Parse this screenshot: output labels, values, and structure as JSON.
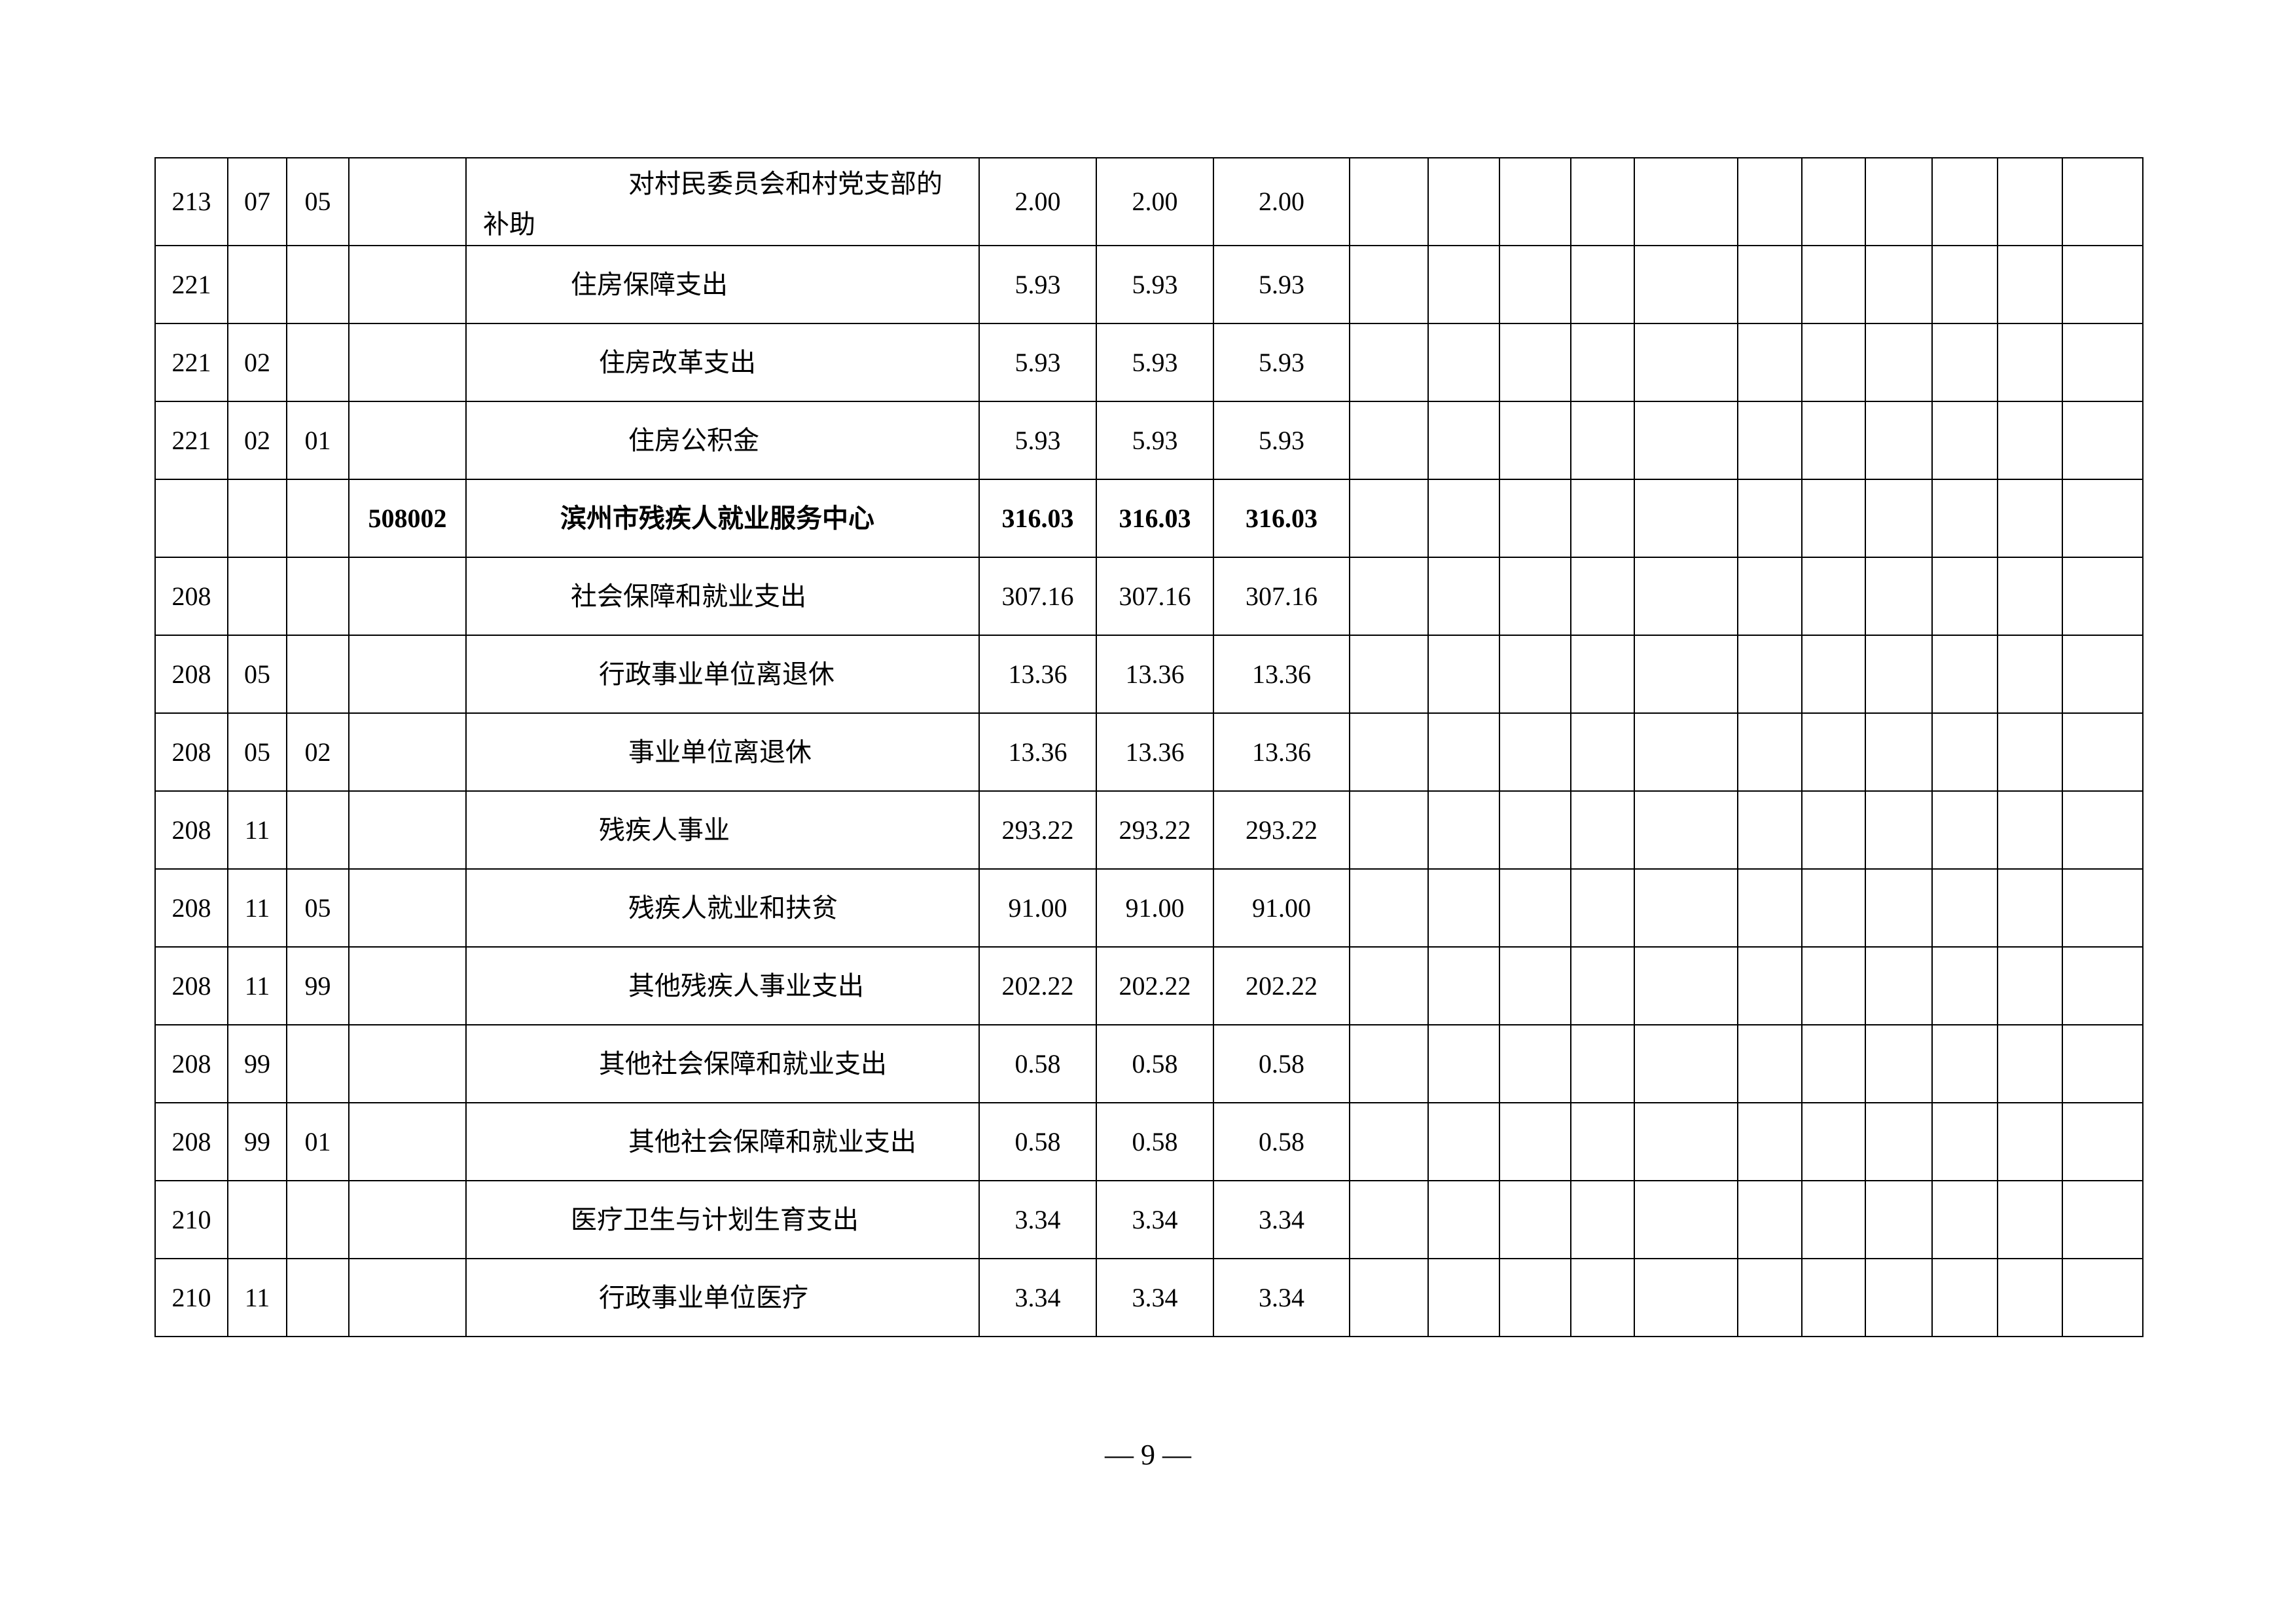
{
  "table": {
    "rows": [
      {
        "class": "213",
        "item": "07",
        "section": "05",
        "code": "",
        "name": "对村民委员会和村党支部的补助",
        "level": 3,
        "v1": "2.00",
        "v2": "2.00",
        "v3": "2.00",
        "bold": false
      },
      {
        "class": "221",
        "item": "",
        "section": "",
        "code": "",
        "name": "住房保障支出",
        "level": 1,
        "v1": "5.93",
        "v2": "5.93",
        "v3": "5.93",
        "bold": false
      },
      {
        "class": "221",
        "item": "02",
        "section": "",
        "code": "",
        "name": "住房改革支出",
        "level": 2,
        "v1": "5.93",
        "v2": "5.93",
        "v3": "5.93",
        "bold": false
      },
      {
        "class": "221",
        "item": "02",
        "section": "01",
        "code": "",
        "name": "住房公积金",
        "level": 3,
        "v1": "5.93",
        "v2": "5.93",
        "v3": "5.93",
        "bold": false
      },
      {
        "class": "",
        "item": "",
        "section": "",
        "code": "508002",
        "name": "滨州市残疾人就业服务中心",
        "level": 0,
        "v1": "316.03",
        "v2": "316.03",
        "v3": "316.03",
        "bold": true
      },
      {
        "class": "208",
        "item": "",
        "section": "",
        "code": "",
        "name": "社会保障和就业支出",
        "level": 1,
        "v1": "307.16",
        "v2": "307.16",
        "v3": "307.16",
        "bold": false
      },
      {
        "class": "208",
        "item": "05",
        "section": "",
        "code": "",
        "name": "行政事业单位离退休",
        "level": 2,
        "v1": "13.36",
        "v2": "13.36",
        "v3": "13.36",
        "bold": false
      },
      {
        "class": "208",
        "item": "05",
        "section": "02",
        "code": "",
        "name": "事业单位离退休",
        "level": 3,
        "v1": "13.36",
        "v2": "13.36",
        "v3": "13.36",
        "bold": false
      },
      {
        "class": "208",
        "item": "11",
        "section": "",
        "code": "",
        "name": "残疾人事业",
        "level": 2,
        "v1": "293.22",
        "v2": "293.22",
        "v3": "293.22",
        "bold": false
      },
      {
        "class": "208",
        "item": "11",
        "section": "05",
        "code": "",
        "name": "残疾人就业和扶贫",
        "level": 3,
        "v1": "91.00",
        "v2": "91.00",
        "v3": "91.00",
        "bold": false
      },
      {
        "class": "208",
        "item": "11",
        "section": "99",
        "code": "",
        "name": "其他残疾人事业支出",
        "level": 3,
        "v1": "202.22",
        "v2": "202.22",
        "v3": "202.22",
        "bold": false
      },
      {
        "class": "208",
        "item": "99",
        "section": "",
        "code": "",
        "name": "其他社会保障和就业支出",
        "level": 2,
        "v1": "0.58",
        "v2": "0.58",
        "v3": "0.58",
        "bold": false
      },
      {
        "class": "208",
        "item": "99",
        "section": "01",
        "code": "",
        "name": "其他社会保障和就业支出",
        "level": 3,
        "v1": "0.58",
        "v2": "0.58",
        "v3": "0.58",
        "bold": false
      },
      {
        "class": "210",
        "item": "",
        "section": "",
        "code": "",
        "name": "医疗卫生与计划生育支出",
        "level": 1,
        "v1": "3.34",
        "v2": "3.34",
        "v3": "3.34",
        "bold": false
      },
      {
        "class": "210",
        "item": "11",
        "section": "",
        "code": "",
        "name": "行政事业单位医疗",
        "level": 2,
        "v1": "3.34",
        "v2": "3.34",
        "v3": "3.34",
        "bold": false
      }
    ]
  },
  "footer": {
    "page_number": "— 9 —"
  }
}
